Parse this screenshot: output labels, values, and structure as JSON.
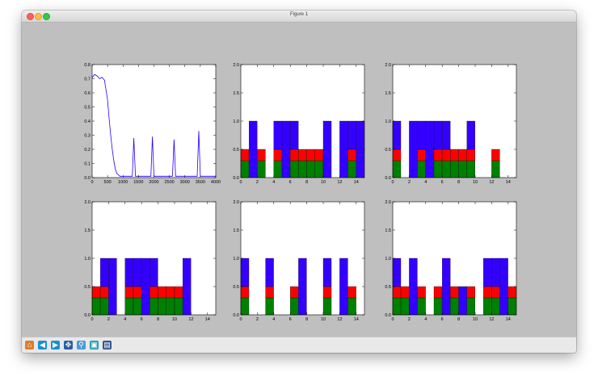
{
  "window": {
    "title": "Figure 1"
  },
  "toolbar": {
    "buttons": [
      {
        "name": "home-button",
        "icon": "home-icon",
        "glyph": "⌂",
        "color": "#e07b2c"
      },
      {
        "name": "back-button",
        "icon": "arrow-left-icon",
        "glyph": "◀",
        "color": "#1a8fd6"
      },
      {
        "name": "forward-button",
        "icon": "arrow-right-icon",
        "glyph": "▶",
        "color": "#1a8fd6"
      },
      {
        "name": "pan-button",
        "icon": "move-icon",
        "glyph": "✥",
        "color": "#2b5fa8"
      },
      {
        "name": "zoom-button",
        "icon": "zoom-rect-icon",
        "glyph": "⚲",
        "color": "#4a9bd9"
      },
      {
        "name": "configure-subplots-button",
        "icon": "subplots-icon",
        "glyph": "▣",
        "color": "#27a3b0"
      },
      {
        "name": "save-button",
        "icon": "save-icon",
        "glyph": "▤",
        "color": "#34568b"
      }
    ]
  },
  "chart_data": [
    {
      "type": "line",
      "title": "",
      "xlim": [
        0,
        4000
      ],
      "ylim": [
        0.0,
        0.8
      ],
      "xticks": [
        "0",
        "500",
        "1000",
        "1500",
        "2000",
        "2500",
        "3000",
        "3500",
        "4000"
      ],
      "yticks": [
        "0.0",
        "0.1",
        "0.2",
        "0.3",
        "0.4",
        "0.5",
        "0.6",
        "0.7",
        "0.8"
      ],
      "color": "#2200ff",
      "series": [
        {
          "name": "value",
          "x": [
            0,
            80,
            160,
            240,
            320,
            400,
            450,
            500,
            550,
            600,
            650,
            700,
            750,
            800,
            900,
            1000,
            1200,
            1300,
            1350,
            1400,
            1500,
            1800,
            1900,
            1950,
            2000,
            2100,
            2500,
            2600,
            2650,
            2700,
            2800,
            3300,
            3400,
            3450,
            3500,
            3600,
            4000
          ],
          "y": [
            0.71,
            0.73,
            0.72,
            0.7,
            0.71,
            0.69,
            0.62,
            0.55,
            0.42,
            0.3,
            0.2,
            0.12,
            0.06,
            0.03,
            0.01,
            0.01,
            0.01,
            0.01,
            0.28,
            0.01,
            0.01,
            0.01,
            0.01,
            0.29,
            0.01,
            0.01,
            0.01,
            0.01,
            0.27,
            0.01,
            0.01,
            0.01,
            0.01,
            0.33,
            0.01,
            0.01,
            0.01
          ]
        }
      ]
    },
    {
      "type": "bar",
      "stacked": true,
      "xlim": [
        0,
        15
      ],
      "ylim": [
        0.0,
        2.0
      ],
      "xticks": [
        "0",
        "2",
        "4",
        "6",
        "8",
        "10",
        "12",
        "14"
      ],
      "yticks": [
        "0.0",
        "0.5",
        "1.0",
        "1.5",
        "2.0"
      ],
      "x": [
        0,
        1,
        2,
        3,
        4,
        5,
        6,
        7,
        8,
        9,
        10,
        11,
        12,
        13,
        14
      ],
      "series": [
        {
          "name": "green",
          "color": "#008000",
          "values": [
            0.3,
            0,
            0.3,
            0,
            0.3,
            0,
            0.3,
            0.3,
            0.3,
            0.3,
            0,
            0,
            0,
            0.3,
            0
          ]
        },
        {
          "name": "red",
          "color": "#ff0000",
          "values": [
            0.2,
            0,
            0.2,
            0,
            0.2,
            0,
            0.2,
            0.2,
            0.2,
            0.2,
            0,
            0,
            0,
            0.2,
            0
          ]
        },
        {
          "name": "blue",
          "color": "#3300ff",
          "values": [
            0,
            1.0,
            0,
            0,
            0.5,
            1.0,
            0.5,
            0,
            0,
            0,
            1.0,
            0,
            1.0,
            0.5,
            1.0
          ]
        }
      ]
    },
    {
      "type": "bar",
      "stacked": true,
      "xlim": [
        0,
        15
      ],
      "ylim": [
        0.0,
        2.0
      ],
      "xticks": [
        "0",
        "2",
        "4",
        "6",
        "8",
        "10",
        "12",
        "14"
      ],
      "yticks": [
        "0.0",
        "0.5",
        "1.0",
        "1.5",
        "2.0"
      ],
      "x": [
        0,
        1,
        2,
        3,
        4,
        5,
        6,
        7,
        8,
        9,
        10,
        11,
        12,
        13,
        14
      ],
      "series": [
        {
          "name": "green",
          "color": "#008000",
          "values": [
            0.3,
            0,
            0,
            0.3,
            0,
            0.3,
            0.3,
            0.3,
            0.3,
            0.3,
            0,
            0,
            0.3,
            0,
            0
          ]
        },
        {
          "name": "red",
          "color": "#ff0000",
          "values": [
            0.2,
            0,
            0,
            0.2,
            0,
            0.2,
            0.2,
            0.2,
            0.2,
            0.2,
            0,
            0,
            0.2,
            0,
            0
          ]
        },
        {
          "name": "blue",
          "color": "#3300ff",
          "values": [
            0.5,
            0,
            1.0,
            0.5,
            1.0,
            0.5,
            0.5,
            0,
            0,
            0.5,
            0,
            0,
            0,
            0,
            0
          ]
        }
      ]
    },
    {
      "type": "bar",
      "stacked": true,
      "xlim": [
        0,
        15
      ],
      "ylim": [
        0.0,
        2.0
      ],
      "xticks": [
        "0",
        "2",
        "4",
        "6",
        "8",
        "10",
        "12",
        "14"
      ],
      "yticks": [
        "0.0",
        "0.5",
        "1.0",
        "1.5",
        "2.0"
      ],
      "x": [
        0,
        1,
        2,
        3,
        4,
        5,
        6,
        7,
        8,
        9,
        10,
        11,
        12,
        13,
        14
      ],
      "series": [
        {
          "name": "green",
          "color": "#008000",
          "values": [
            0.3,
            0.3,
            0,
            0,
            0.3,
            0.3,
            0,
            0.3,
            0.3,
            0.3,
            0.3,
            0,
            0,
            0,
            0
          ]
        },
        {
          "name": "red",
          "color": "#ff0000",
          "values": [
            0.2,
            0.2,
            0,
            0,
            0.2,
            0.2,
            0,
            0.2,
            0.2,
            0.2,
            0.2,
            0,
            0,
            0,
            0
          ]
        },
        {
          "name": "blue",
          "color": "#3300ff",
          "values": [
            0,
            0.5,
            1.0,
            0,
            0.5,
            0.5,
            1.0,
            0.5,
            0,
            0,
            0,
            1.0,
            0,
            0,
            0
          ]
        }
      ]
    },
    {
      "type": "bar",
      "stacked": true,
      "xlim": [
        0,
        15
      ],
      "ylim": [
        0.0,
        2.0
      ],
      "xticks": [
        "0",
        "2",
        "4",
        "6",
        "8",
        "10",
        "12",
        "14"
      ],
      "yticks": [
        "0.0",
        "0.5",
        "1.0",
        "1.5",
        "2.0"
      ],
      "x": [
        0,
        1,
        2,
        3,
        4,
        5,
        6,
        7,
        8,
        9,
        10,
        11,
        12,
        13,
        14
      ],
      "series": [
        {
          "name": "green",
          "color": "#008000",
          "values": [
            0.3,
            0,
            0,
            0.3,
            0,
            0,
            0.3,
            0,
            0,
            0,
            0.3,
            0,
            0,
            0.3,
            0
          ]
        },
        {
          "name": "red",
          "color": "#ff0000",
          "values": [
            0.2,
            0,
            0,
            0.2,
            0,
            0,
            0.2,
            0,
            0,
            0,
            0.2,
            0,
            0,
            0.2,
            0
          ]
        },
        {
          "name": "blue",
          "color": "#3300ff",
          "values": [
            0.5,
            0,
            0,
            0.5,
            0,
            0,
            0,
            1.0,
            0,
            0,
            0.5,
            0,
            1.0,
            0,
            0
          ]
        }
      ]
    },
    {
      "type": "bar",
      "stacked": true,
      "xlim": [
        0,
        15
      ],
      "ylim": [
        0.0,
        2.0
      ],
      "xticks": [
        "0",
        "2",
        "4",
        "6",
        "8",
        "10",
        "12",
        "14"
      ],
      "yticks": [
        "0.0",
        "0.5",
        "1.0",
        "1.5",
        "2.0"
      ],
      "x": [
        0,
        1,
        2,
        3,
        4,
        5,
        6,
        7,
        8,
        9,
        10,
        11,
        12,
        13,
        14
      ],
      "series": [
        {
          "name": "green",
          "color": "#008000",
          "values": [
            0.3,
            0.3,
            0,
            0.3,
            0,
            0.3,
            0,
            0.3,
            0,
            0.3,
            0,
            0.3,
            0.3,
            0,
            0.3
          ]
        },
        {
          "name": "red",
          "color": "#ff0000",
          "values": [
            0.2,
            0.2,
            0,
            0.2,
            0,
            0.2,
            0,
            0.2,
            0,
            0.2,
            0,
            0.2,
            0.2,
            0,
            0.2
          ]
        },
        {
          "name": "blue",
          "color": "#3300ff",
          "values": [
            0.5,
            0,
            1.0,
            0,
            0,
            0,
            1.0,
            0,
            0.5,
            0,
            0,
            0.5,
            0.5,
            1.0,
            0
          ]
        }
      ]
    }
  ]
}
